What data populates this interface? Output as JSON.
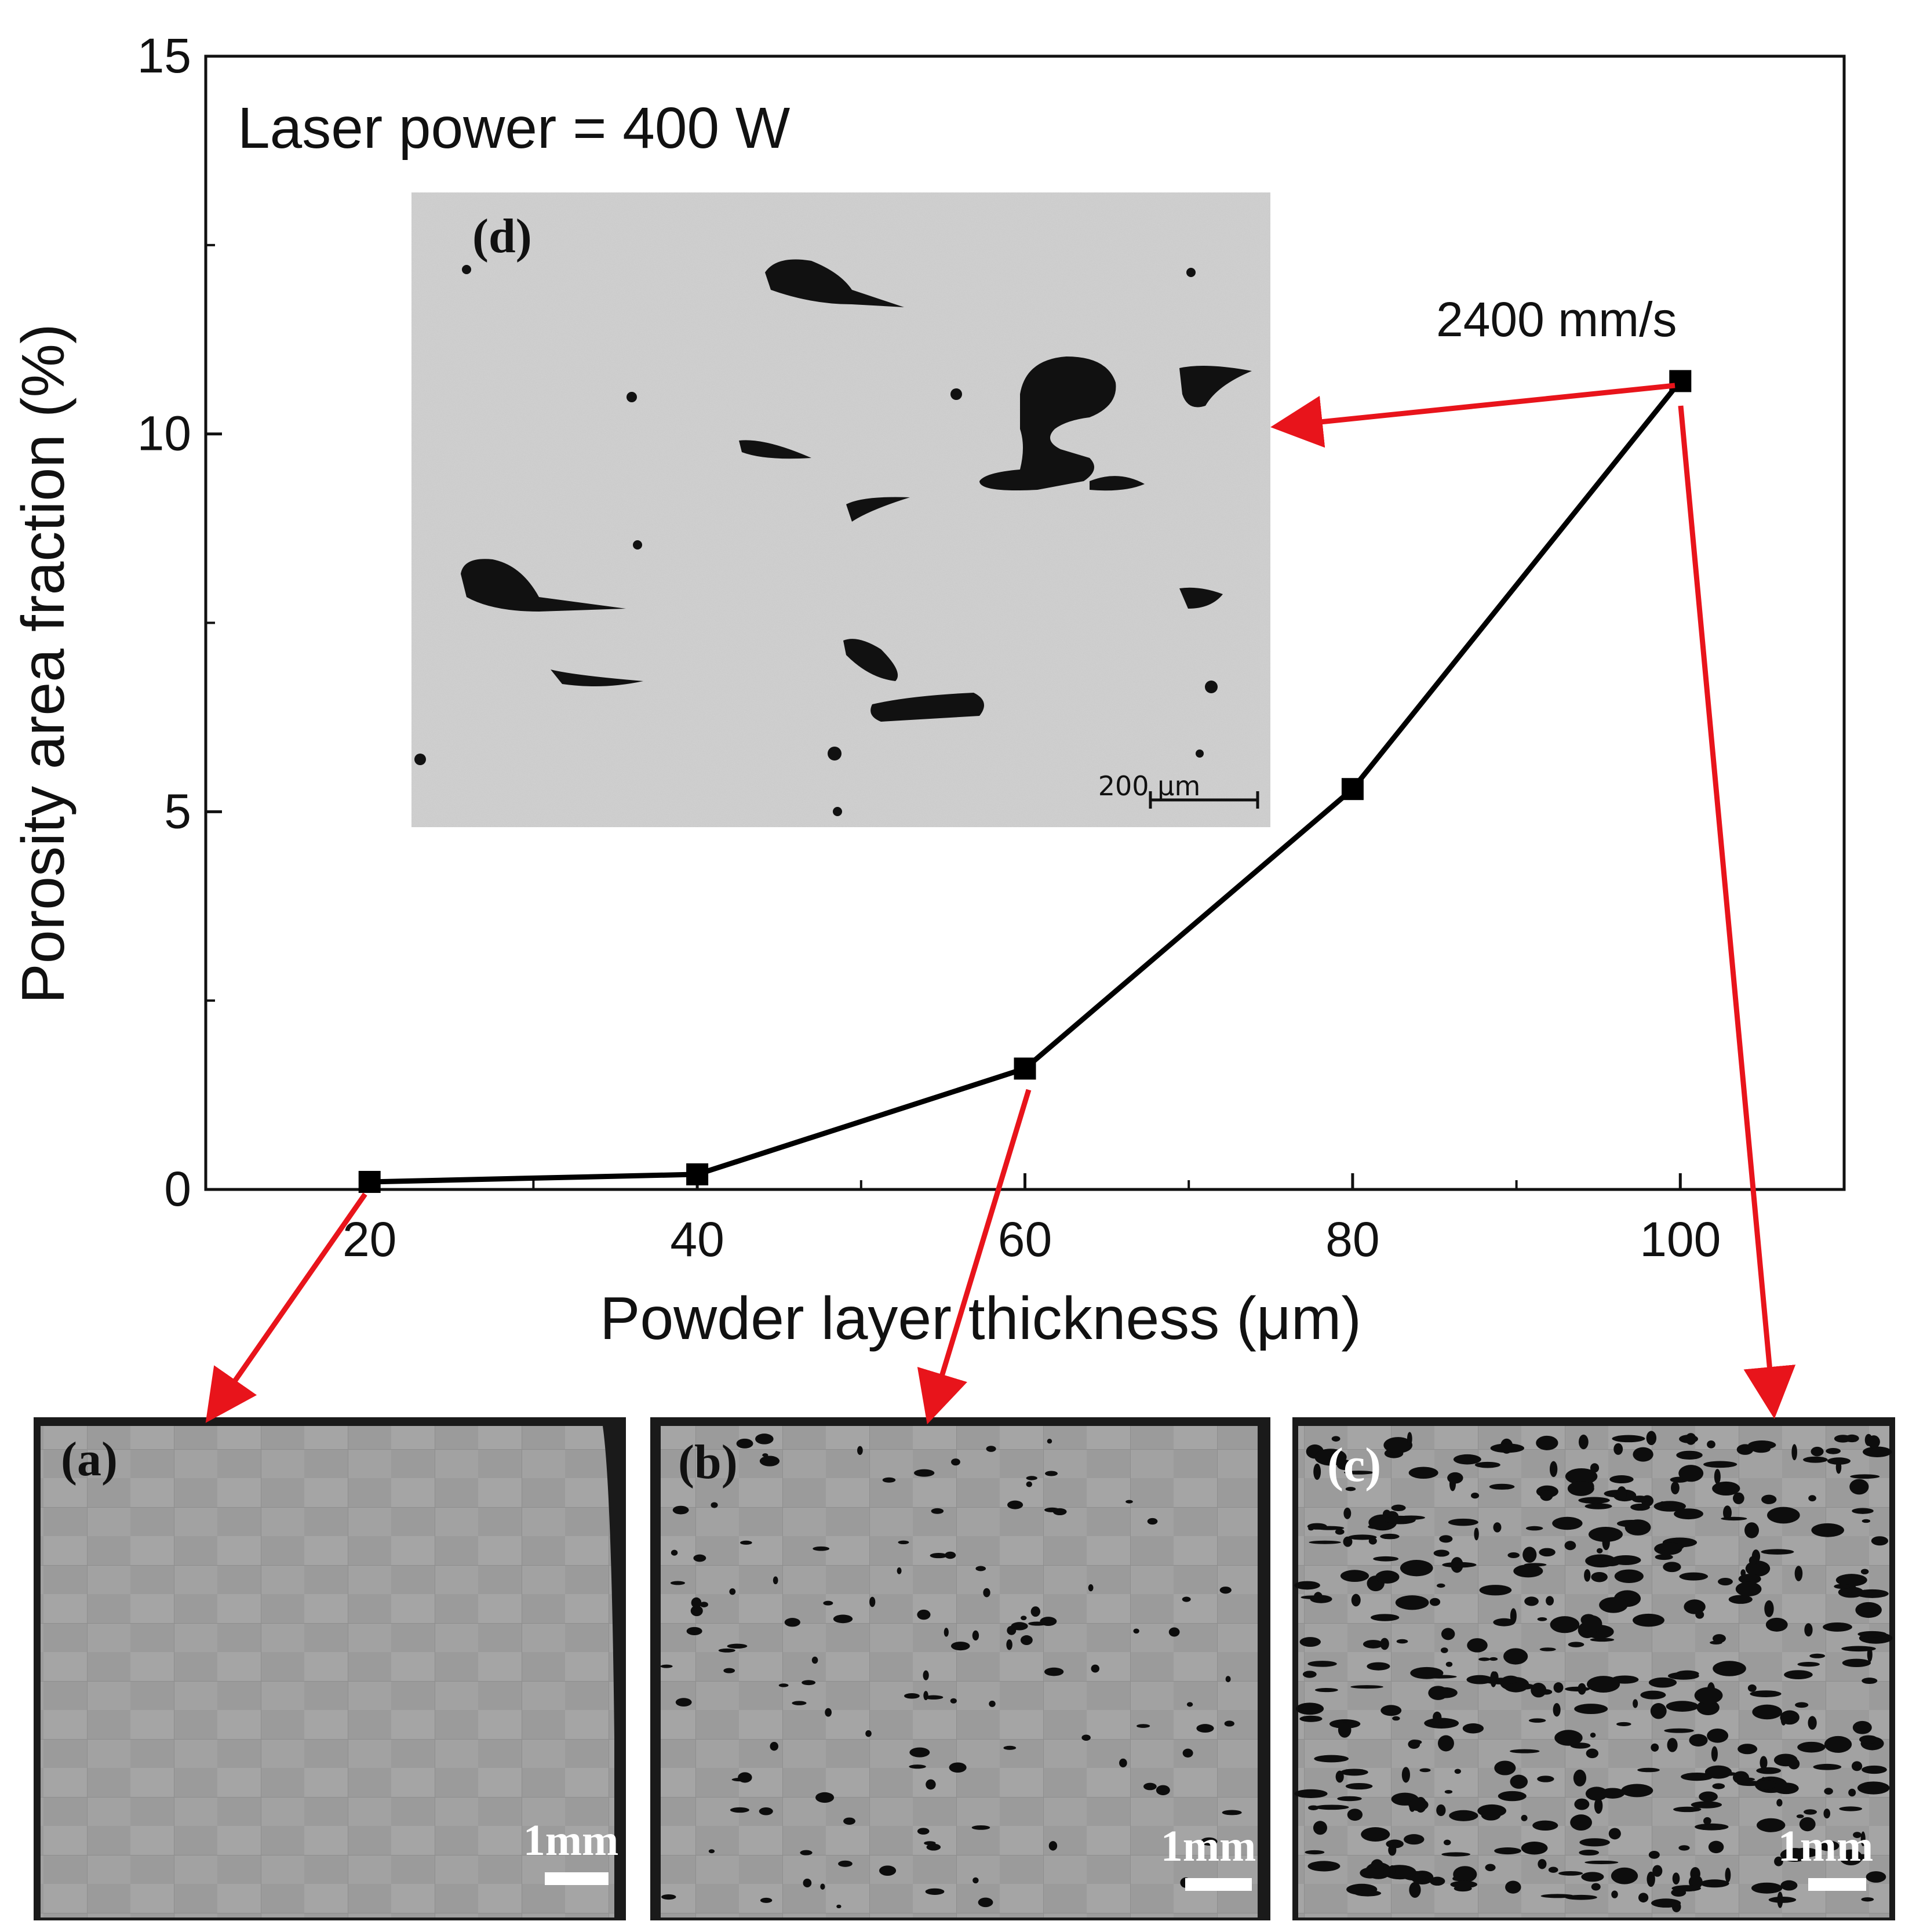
{
  "chart_data": {
    "type": "line",
    "xlabel": "Powder layer thickness (μm)",
    "ylabel": "Porosity area fraction  (%)",
    "xlim": [
      10,
      110
    ],
    "ylim": [
      0,
      15
    ],
    "x_ticks": [
      20,
      40,
      60,
      80,
      100
    ],
    "y_ticks": [
      0,
      5,
      10,
      15
    ],
    "series": [
      {
        "x": [
          20,
          40,
          60,
          80,
          100
        ],
        "values": [
          0.1,
          0.2,
          1.6,
          5.3,
          10.7
        ]
      }
    ],
    "annotations": {
      "laser_power": "Laser power = 400 W",
      "scan_speed": "2400 mm/s"
    },
    "colors": {
      "line": "#000000",
      "arrow": "#e8141b"
    }
  },
  "insets": {
    "d": {
      "label": "(d)",
      "scale": "200 μm"
    },
    "a": {
      "label": "(a)",
      "scale": "1mm"
    },
    "b": {
      "label": "(b)",
      "scale": "1mm"
    },
    "c": {
      "label": "(c)",
      "scale": "1mm"
    }
  }
}
